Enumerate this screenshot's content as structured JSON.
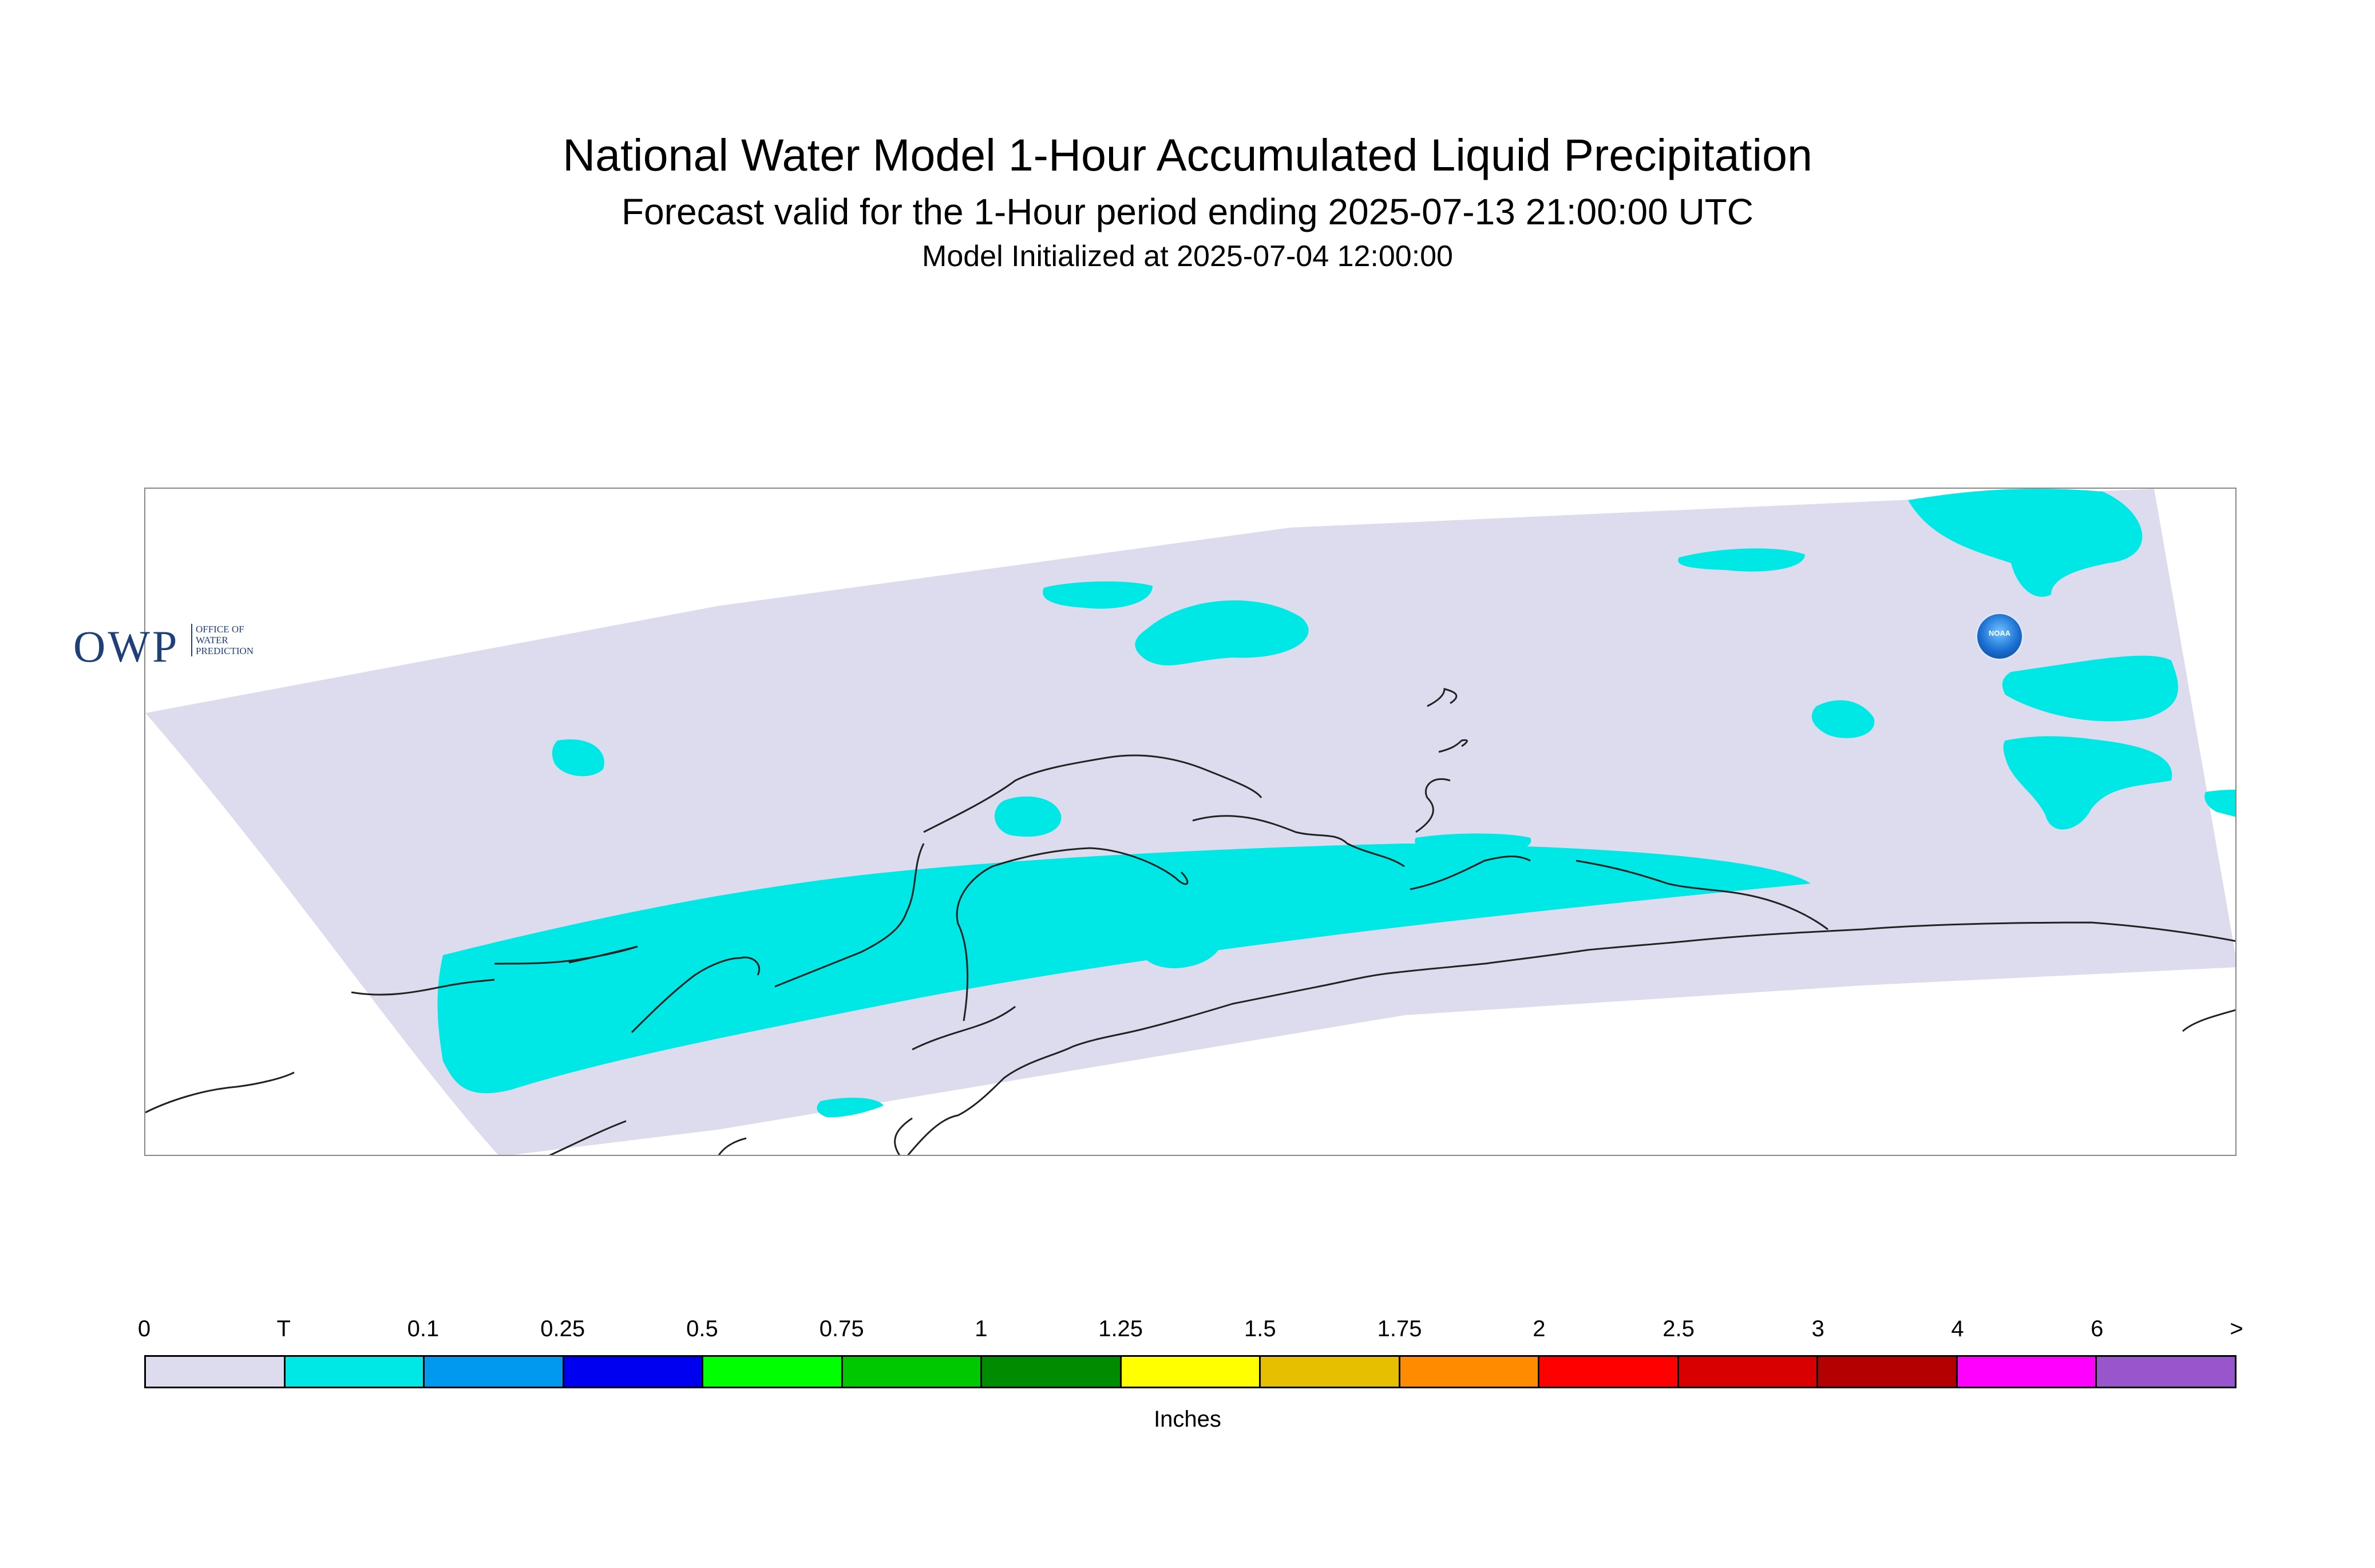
{
  "header": {
    "title": "National Water Model 1-Hour Accumulated Liquid Precipitation",
    "subtitle": "Forecast valid for the 1-Hour period ending 2025-07-13 21:00:00 UTC",
    "init": "Model Initialized at 2025-07-04 12:00:00"
  },
  "map": {
    "domain_color": "#dcdcee",
    "precip_color": "#00e8e6",
    "coast_color": "#222222",
    "logos": {
      "owp_text": "OWP",
      "owp_sub": [
        "OFFICE OF",
        "WATER",
        "PREDICTION"
      ],
      "noaa_text": "NOAA",
      "owp_icon": "owp-logo",
      "noaa_icon": "noaa-logo"
    }
  },
  "legend": {
    "tick_labels": [
      "0",
      "T",
      "0.1",
      "0.25",
      "0.5",
      "0.75",
      "1",
      "1.25",
      "1.5",
      "1.75",
      "2",
      "2.5",
      "3",
      "4",
      "6",
      ">"
    ],
    "colors": [
      "#dcdcee",
      "#00e8e6",
      "#0099f0",
      "#0000f0",
      "#00ff00",
      "#00c800",
      "#008c00",
      "#ffff00",
      "#e6c000",
      "#ff8c00",
      "#ff0000",
      "#d80000",
      "#b40000",
      "#ff00ff",
      "#9955cc"
    ],
    "units": "Inches"
  }
}
